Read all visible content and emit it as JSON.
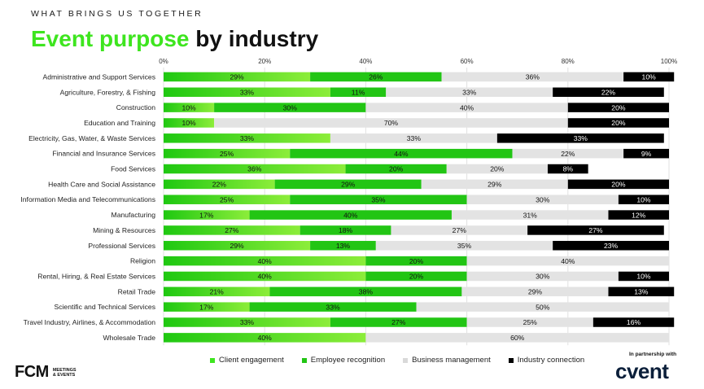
{
  "header": {
    "eyebrow": "WHAT BRINGS US TOGETHER",
    "title_highlight": "Event purpose",
    "title_rest": " by industry"
  },
  "chart_data": {
    "type": "bar",
    "orientation": "horizontal-stacked-100",
    "xlim": [
      0,
      100
    ],
    "x_ticks": [
      "0%",
      "20%",
      "40%",
      "60%",
      "80%",
      "100%"
    ],
    "categories": [
      "Administrative and Support Services",
      "Agriculture, Forestry, & Fishing",
      "Construction",
      "Education and Training",
      "Electricity, Gas, Water, & Waste Services",
      "Financial and Insurance Services",
      "Food Services",
      "Health Care and Social Assistance",
      "Information Media and Telecommunications",
      "Manufacturing",
      "Mining & Resources",
      "Professional Services",
      "Religion",
      "Rental, Hiring, & Real Estate Services",
      "Retail Trade",
      "Scientific and Technical Services",
      "Travel Industry, Airlines, & Accommodation",
      "Wholesale Trade"
    ],
    "series": [
      {
        "name": "Client engagement",
        "color": "#3ee51f",
        "values": [
          29,
          33,
          10,
          10,
          33,
          25,
          36,
          22,
          25,
          17,
          27,
          29,
          40,
          40,
          21,
          17,
          33,
          40
        ]
      },
      {
        "name": "Employee recognition",
        "color": "#22c514",
        "values": [
          26,
          11,
          30,
          0,
          0,
          44,
          20,
          29,
          35,
          40,
          18,
          13,
          20,
          20,
          38,
          33,
          27,
          0
        ]
      },
      {
        "name": "Business management",
        "color": "#e3e3e3",
        "values": [
          36,
          33,
          40,
          70,
          33,
          22,
          20,
          29,
          30,
          31,
          27,
          35,
          40,
          30,
          29,
          50,
          25,
          60
        ]
      },
      {
        "name": "Industry connection",
        "color": "#000000",
        "values": [
          10,
          22,
          20,
          20,
          33,
          9,
          8,
          20,
          10,
          12,
          27,
          23,
          0,
          10,
          13,
          0,
          16,
          0
        ]
      }
    ]
  },
  "footer": {
    "fcm_logo": "FCM",
    "fcm_sub_line1": "MEETINGS",
    "fcm_sub_line2": "& EVENTS",
    "partner_text": "In partnership with",
    "cvent_logo": "cvent"
  }
}
